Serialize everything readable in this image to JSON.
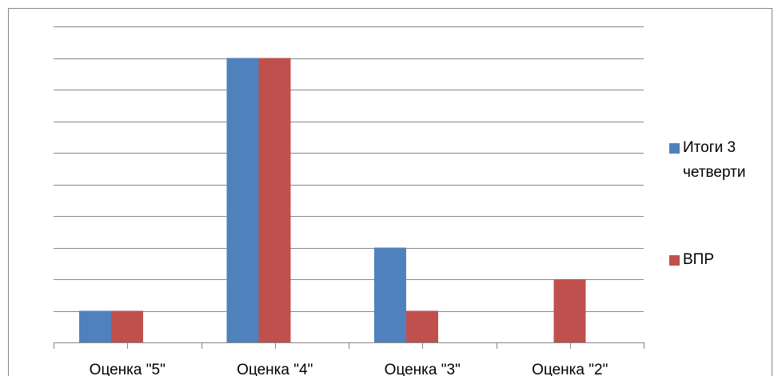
{
  "colors": {
    "series_1": "#4F81BD",
    "series_2": "#C0504D",
    "gridline": "#868686",
    "axis": "#868686",
    "frame": "#868686"
  },
  "chart_data": {
    "type": "bar",
    "categories": [
      "Оценка \"5\"",
      "Оценка \"4\"",
      "Оценка \"3\"",
      "Оценка \"2\""
    ],
    "series": [
      {
        "name": "Итоги 3 четверти",
        "values": [
          1,
          9,
          3,
          0
        ]
      },
      {
        "name": "ВПР",
        "values": [
          1,
          9,
          1,
          2
        ]
      }
    ],
    "ylim": [
      0,
      10
    ],
    "y_tick_labels_visible": false,
    "grid": true,
    "legend_position": "right",
    "legend_lines": [
      [
        "Итоги 3",
        "четверти"
      ],
      [
        "ВПР"
      ]
    ]
  }
}
